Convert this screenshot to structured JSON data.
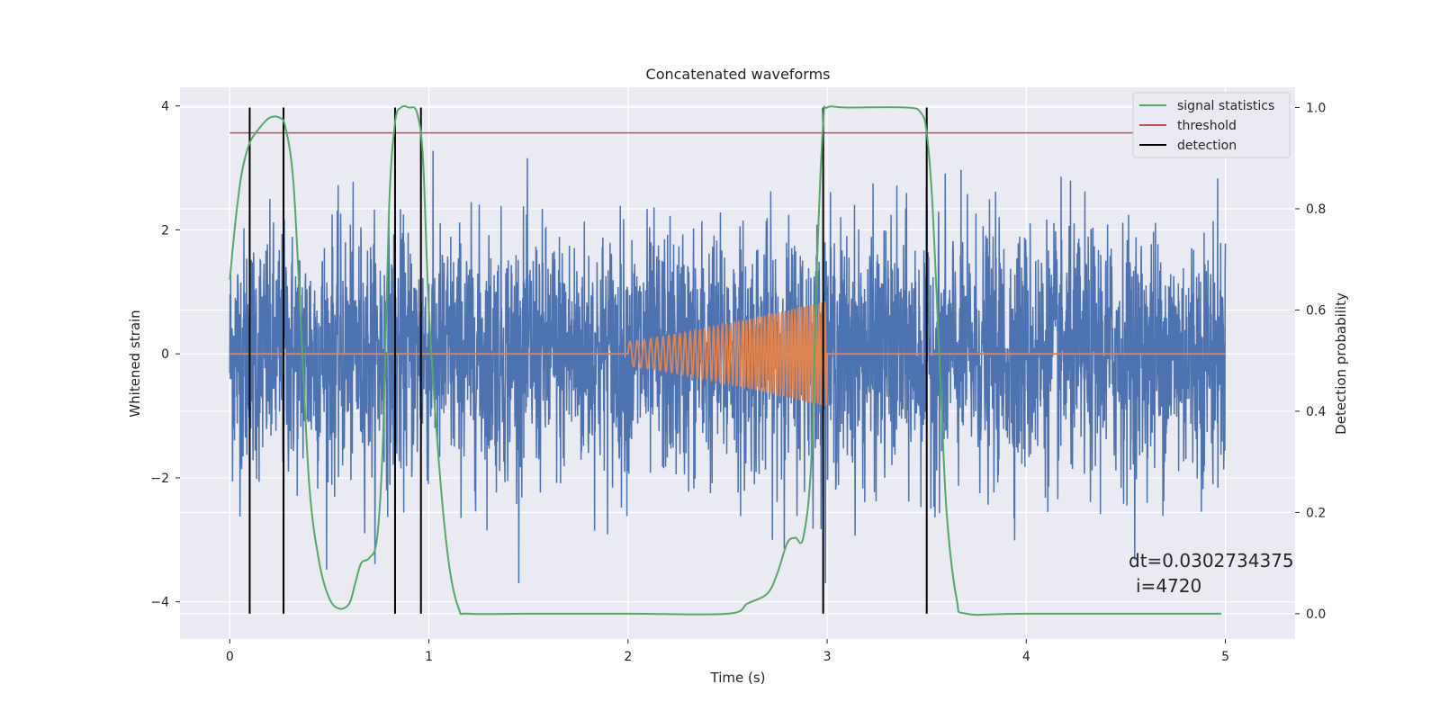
{
  "chart_data": {
    "type": "line",
    "title": "Concatenated waveforms",
    "xlabel": "Time (s)",
    "ylabel_left": "Whitened strain",
    "ylabel_right": "Detection probability",
    "xlim": [
      -0.25,
      5.35
    ],
    "ylim_left": [
      -4.6,
      4.3
    ],
    "ylim_right": [
      -0.05,
      1.04
    ],
    "x_ticks": [
      0,
      1,
      2,
      3,
      4,
      5
    ],
    "y_left_ticks": [
      -4,
      -2,
      0,
      2,
      4
    ],
    "y_right_ticks": [
      0.0,
      0.2,
      0.4,
      0.6,
      0.8,
      1.0
    ],
    "y_left_tick_labels": [
      "−4",
      "−2",
      "0",
      "2",
      "4"
    ],
    "y_right_tick_labels": [
      "0.0",
      "0.2",
      "0.4",
      "0.6",
      "0.8",
      "1.0"
    ],
    "grid": true,
    "legend_position": "top-right",
    "legend": [
      {
        "label": "signal statistics",
        "color": "#55a868"
      },
      {
        "label": "threshold",
        "color": "#c44e52"
      },
      {
        "label": "detection",
        "color": "#000000"
      }
    ],
    "annotation": {
      "line1": "dt=0.0302734375",
      "line2": "i=4720"
    },
    "noise": {
      "color": "#4c72b0",
      "x_range": [
        0,
        5
      ],
      "typical_amplitude": 1.0,
      "max_amplitude": 3.7
    },
    "chirp": {
      "color": "#dd8452",
      "x_range": [
        2.0,
        3.0
      ],
      "start_amplitude": 0.2,
      "end_amplitude": 0.85,
      "baseline": 0
    },
    "threshold": {
      "value": 0.95,
      "x_range": [
        0,
        5
      ]
    },
    "detections_x": [
      0.1,
      0.27,
      0.83,
      0.96,
      2.98,
      3.5
    ],
    "signal_statistics": {
      "x": [
        0,
        0.03,
        0.06,
        0.1,
        0.15,
        0.2,
        0.25,
        0.28,
        0.32,
        0.36,
        0.4,
        0.45,
        0.5,
        0.55,
        0.6,
        0.63,
        0.66,
        0.7,
        0.74,
        0.77,
        0.8,
        0.83,
        0.86,
        0.9,
        0.94,
        0.97,
        1.0,
        1.05,
        1.1,
        1.15,
        1.2,
        1.5,
        2.0,
        2.5,
        2.6,
        2.7,
        2.75,
        2.8,
        2.84,
        2.88,
        2.92,
        2.95,
        2.98,
        3.0,
        3.1,
        3.4,
        3.47,
        3.5,
        3.53,
        3.57,
        3.6,
        3.65,
        3.7,
        4.0,
        4.98
      ],
      "y": [
        0.66,
        0.78,
        0.87,
        0.93,
        0.96,
        0.98,
        0.98,
        0.96,
        0.85,
        0.55,
        0.25,
        0.1,
        0.03,
        0.01,
        0.02,
        0.06,
        0.1,
        0.11,
        0.15,
        0.35,
        0.8,
        0.97,
        1.0,
        1.0,
        0.99,
        0.9,
        0.6,
        0.3,
        0.1,
        0.01,
        0.0,
        0.0,
        0.0,
        0.0,
        0.02,
        0.04,
        0.08,
        0.14,
        0.15,
        0.15,
        0.3,
        0.7,
        0.97,
        1.0,
        1.0,
        1.0,
        0.99,
        0.95,
        0.8,
        0.45,
        0.2,
        0.03,
        0.0,
        0.0,
        0.0
      ]
    }
  }
}
